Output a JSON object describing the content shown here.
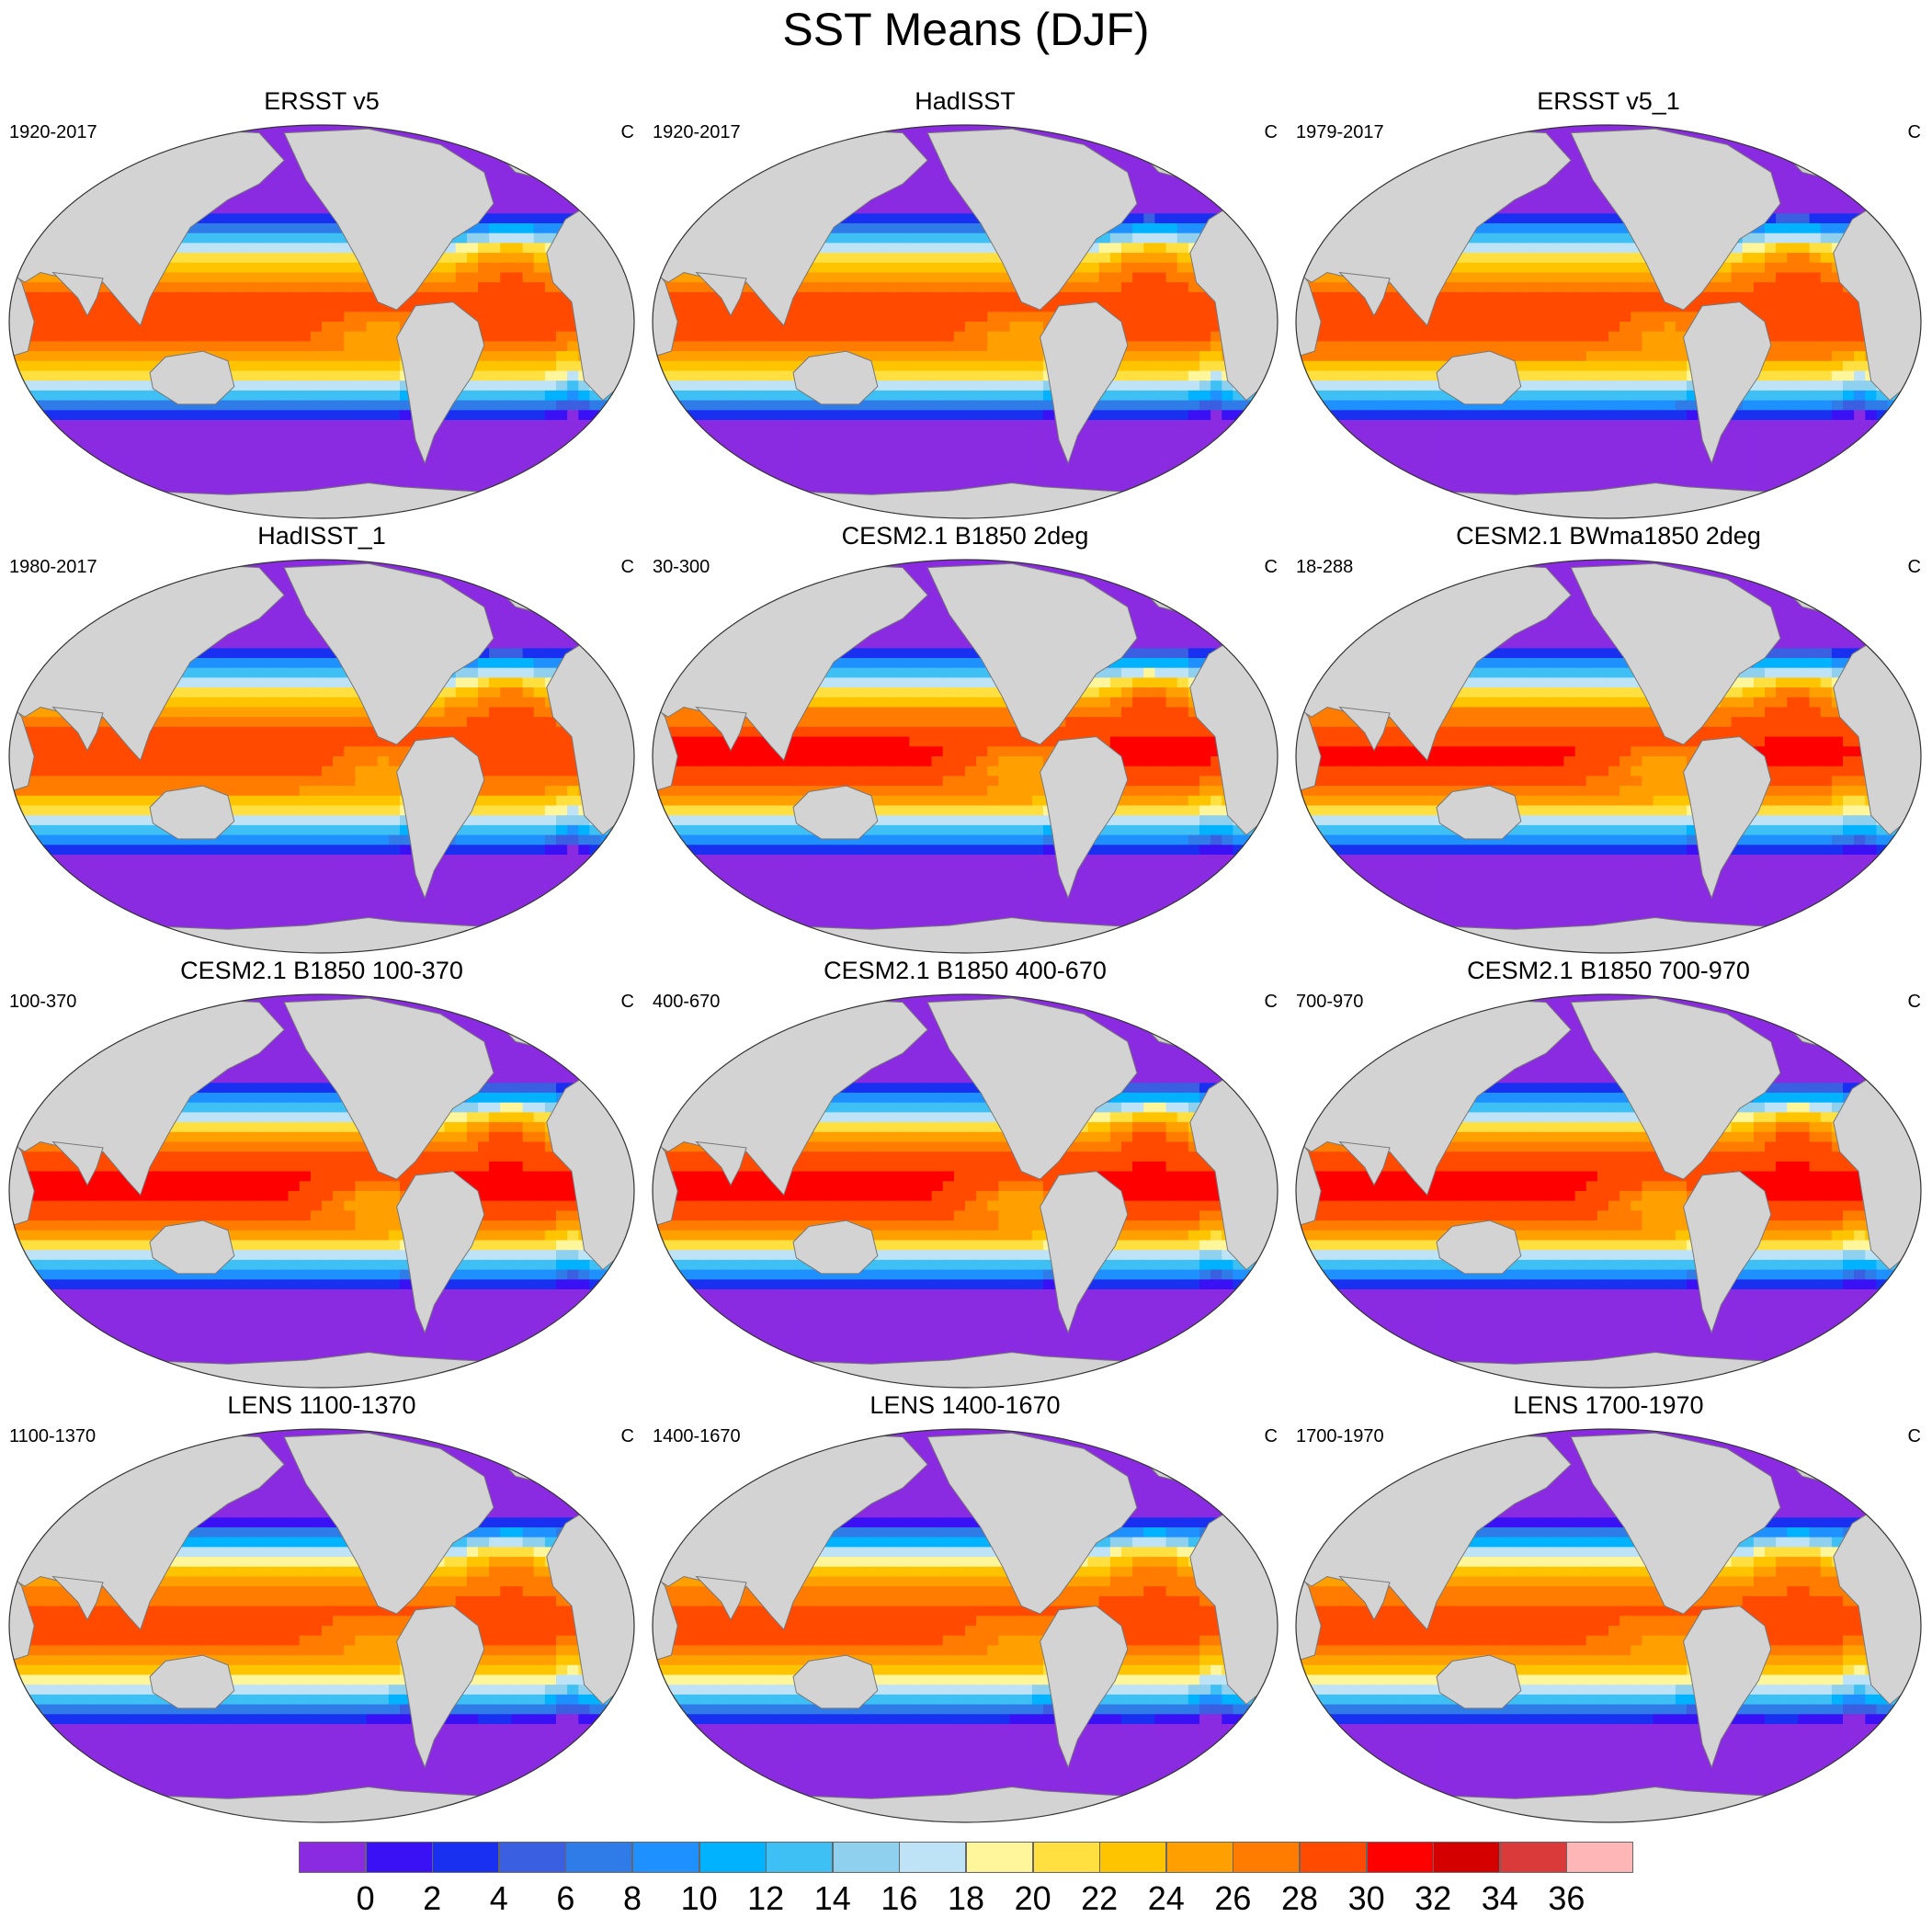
{
  "title": "SST Means (DJF)",
  "colors": {
    "land": "#d3d3d3",
    "coastline": "#777777",
    "background": "#ffffff"
  },
  "colorbar": {
    "colors": [
      "#8a2be2",
      "#3a10f5",
      "#1a30f0",
      "#3a5fe0",
      "#2f7ce8",
      "#1e90ff",
      "#00b2ff",
      "#3fc0f5",
      "#8fd0ee",
      "#bee3f6",
      "#fff59a",
      "#ffe040",
      "#ffc400",
      "#ffa000",
      "#ff7c00",
      "#ff4a00",
      "#ff0000",
      "#d40000",
      "#da3a3a",
      "#ffb6b6"
    ],
    "labels": [
      "0",
      "2",
      "4",
      "6",
      "8",
      "10",
      "12",
      "14",
      "16",
      "18",
      "20",
      "22",
      "24",
      "26",
      "28",
      "30",
      "32",
      "34",
      "36"
    ]
  },
  "panels": [
    {
      "title": "ERSST v5",
      "period": "1920-2017",
      "unit": "C",
      "map": {
        "peak": 29.5,
        "eq_east": 25.5
      }
    },
    {
      "title": "HadISST",
      "period": "1920-2017",
      "unit": "C",
      "map": {
        "peak": 29.6,
        "eq_east": 25.5
      }
    },
    {
      "title": "ERSST v5_1",
      "period": "1979-2017",
      "unit": "C",
      "map": {
        "peak": 29.8,
        "eq_east": 25.8
      }
    },
    {
      "title": "HadISST_1",
      "period": "1980-2017",
      "unit": "C",
      "map": {
        "peak": 29.8,
        "eq_east": 25.8
      }
    },
    {
      "title": "CESM2.1 B1850 2deg",
      "period": "30-300",
      "unit": "C",
      "map": {
        "peak": 30.4,
        "eq_east": 25.0
      }
    },
    {
      "title": "CESM2.1 BWma1850 2deg",
      "period": "18-288",
      "unit": "C",
      "map": {
        "peak": 30.3,
        "eq_east": 25.0
      }
    },
    {
      "title": "CESM2.1 B1850 100-370",
      "period": "100-370",
      "unit": "C",
      "map": {
        "peak": 30.6,
        "eq_east": 25.0
      }
    },
    {
      "title": "CESM2.1 B1850 400-670",
      "period": "400-670",
      "unit": "C",
      "map": {
        "peak": 30.6,
        "eq_east": 25.0
      }
    },
    {
      "title": "CESM2.1 B1850 700-970",
      "period": "700-970",
      "unit": "C",
      "map": {
        "peak": 30.6,
        "eq_east": 25.0
      }
    },
    {
      "title": "LENS 1100-1370",
      "period": "1100-1370",
      "unit": "C",
      "map": {
        "peak": 29.0,
        "eq_east": 26.0
      }
    },
    {
      "title": "LENS 1400-1670",
      "period": "1400-1670",
      "unit": "C",
      "map": {
        "peak": 29.0,
        "eq_east": 26.0
      }
    },
    {
      "title": "LENS 1700-1970",
      "period": "1700-1970",
      "unit": "C",
      "map": {
        "peak": 29.0,
        "eq_east": 26.0
      }
    }
  ]
}
